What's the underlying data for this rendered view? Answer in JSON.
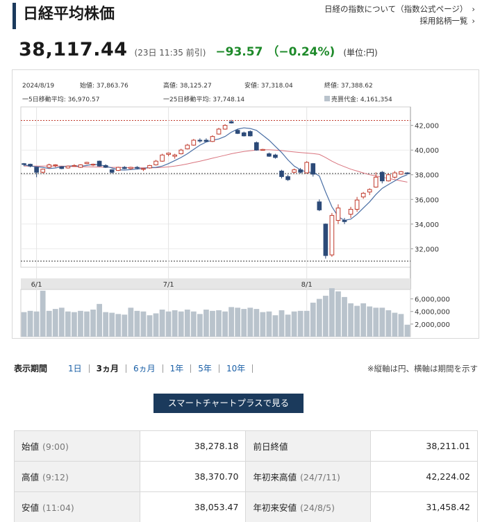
{
  "header": {
    "title": "日経平均株価",
    "link1": "日経の指数について（指数公式ページ）",
    "link2": "採用銘柄一覧",
    "chev": "›"
  },
  "quote": {
    "price": "38,117.44",
    "timestamp": "(23日 11:35 前引)",
    "change": "−93.57 （−0.24%)",
    "unit": "(単位:円)"
  },
  "info": {
    "date": "2024/8/19",
    "open": "始値: 37,863.76",
    "high": "高値: 38,125.27",
    "low": "安値: 37,318.04",
    "close": "終値: 37,388.62",
    "ma5": "一5日移動平均: 36,970.57",
    "ma25": "一25日移動平均: 37,748.14",
    "volume": "売買代金: 4,161,354"
  },
  "colors": {
    "up": "#c0392b",
    "down": "#2c4a78",
    "ma5": "#4a6fa5",
    "ma25": "#d9747e",
    "volume": "#b9c3cc",
    "change": "#1e8a2a",
    "button": "#1b3a5c"
  },
  "chart_data": {
    "type": "candlestick",
    "x_labels": [
      "6/1",
      "7/1",
      "8/1"
    ],
    "y_ticks": [
      "42,000",
      "40,000",
      "38,000",
      "36,000",
      "34,000",
      "32,000"
    ],
    "volume_ticks": [
      "6,000,000",
      "4,000,000",
      "2,000,000"
    ],
    "ylim": [
      30500,
      43500
    ],
    "volume_ylim": [
      0,
      7500000
    ],
    "reference_lines": [
      42400,
      38100,
      31000
    ],
    "candles": [
      [
        38900,
        38950,
        38700,
        38850
      ],
      [
        38850,
        38900,
        38600,
        38700
      ],
      [
        38600,
        38650,
        37800,
        38200
      ],
      [
        38200,
        38500,
        38100,
        38450
      ],
      [
        38600,
        38900,
        38500,
        38800
      ],
      [
        38750,
        38850,
        38600,
        38800
      ],
      [
        38650,
        38700,
        38450,
        38500
      ],
      [
        38550,
        38750,
        38500,
        38700
      ],
      [
        38700,
        38850,
        38650,
        38750
      ],
      [
        38600,
        38850,
        38550,
        38800
      ],
      [
        38900,
        39050,
        38850,
        39000
      ],
      [
        38800,
        38900,
        38700,
        38850
      ],
      [
        39100,
        39150,
        38650,
        38700
      ],
      [
        38750,
        38850,
        38550,
        38600
      ],
      [
        38400,
        38450,
        38100,
        38200
      ],
      [
        38350,
        38650,
        38300,
        38600
      ],
      [
        38600,
        38700,
        38450,
        38500
      ],
      [
        38500,
        38650,
        38400,
        38600
      ],
      [
        38600,
        38700,
        38450,
        38550
      ],
      [
        38450,
        38550,
        38300,
        38500
      ],
      [
        38550,
        38800,
        38500,
        38750
      ],
      [
        38800,
        39200,
        38750,
        39100
      ],
      [
        39100,
        39700,
        39050,
        39600
      ],
      [
        39650,
        39800,
        39500,
        39750
      ],
      [
        39500,
        39700,
        39300,
        39600
      ],
      [
        39700,
        40100,
        39650,
        40000
      ],
      [
        40100,
        40500,
        40050,
        40400
      ],
      [
        40400,
        40900,
        40350,
        40800
      ],
      [
        40800,
        40950,
        40600,
        40750
      ],
      [
        40800,
        40950,
        40650,
        40700
      ],
      [
        40700,
        41200,
        40650,
        41100
      ],
      [
        41300,
        41800,
        41250,
        41700
      ],
      [
        41700,
        42100,
        41650,
        42000
      ],
      [
        42300,
        42450,
        42150,
        42200
      ],
      [
        41600,
        41700,
        41300,
        41350
      ],
      [
        41400,
        41500,
        41100,
        41150
      ],
      [
        41500,
        41600,
        41100,
        41150
      ],
      [
        40600,
        40700,
        39950,
        40000
      ],
      [
        40000,
        40100,
        39950,
        40050
      ],
      [
        39700,
        39800,
        39450,
        39500
      ],
      [
        39600,
        39700,
        39300,
        39400
      ],
      [
        38300,
        38400,
        37700,
        37850
      ],
      [
        37850,
        38000,
        37500,
        37600
      ],
      [
        38200,
        38500,
        38100,
        38400
      ],
      [
        38400,
        38550,
        38100,
        38200
      ],
      [
        38150,
        39100,
        38100,
        39000
      ],
      [
        38900,
        38950,
        37850,
        38050
      ],
      [
        35800,
        36000,
        35050,
        35150
      ],
      [
        34000,
        34050,
        31200,
        31450
      ],
      [
        31500,
        34900,
        31350,
        34700
      ],
      [
        34300,
        35600,
        34000,
        35300
      ],
      [
        34300,
        34500,
        34000,
        34200
      ],
      [
        34800,
        35400,
        34500,
        35200
      ],
      [
        35200,
        36200,
        35000,
        35950
      ],
      [
        36200,
        36600,
        36050,
        36500
      ],
      [
        36600,
        36900,
        36350,
        36800
      ],
      [
        37000,
        38200,
        36950,
        37800
      ],
      [
        38200,
        38300,
        37300,
        37500
      ],
      [
        37500,
        38100,
        37450,
        38000
      ],
      [
        37800,
        38300,
        37700,
        38150
      ],
      [
        38050,
        38300,
        38000,
        38250
      ],
      [
        38150,
        38200,
        38050,
        38100
      ]
    ],
    "ma5": [
      38800,
      38700,
      38650,
      38600,
      38500,
      38550,
      38650,
      38700,
      38720,
      38680,
      38750,
      38850,
      38800,
      38700,
      38550,
      38400,
      38380,
      38420,
      38450,
      38520,
      38580,
      38600,
      38700,
      38900,
      39150,
      39400,
      39700,
      40050,
      40400,
      40650,
      40800,
      40900,
      41100,
      41450,
      41700,
      41800,
      41750,
      41600,
      41200,
      40800,
      40300,
      39800,
      39200,
      38700,
      38400,
      38200,
      38200,
      37900,
      36600,
      35400,
      34600,
      34300,
      34400,
      34800,
      35300,
      35800,
      36400,
      36900,
      37200,
      37500,
      37800,
      38000
    ],
    "ma25": [
      38700,
      38700,
      38700,
      38700,
      38700,
      38700,
      38700,
      38680,
      38660,
      38650,
      38640,
      38630,
      38620,
      38620,
      38600,
      38600,
      38580,
      38570,
      38560,
      38560,
      38560,
      38570,
      38600,
      38640,
      38700,
      38780,
      38880,
      38990,
      39100,
      39220,
      39340,
      39460,
      39580,
      39700,
      39800,
      39880,
      39950,
      40000,
      40020,
      40020,
      40000,
      39960,
      39900,
      39850,
      39800,
      39760,
      39720,
      39650,
      39400,
      39100,
      38850,
      38650,
      38450,
      38300,
      38150,
      38000,
      37900,
      37800,
      37700,
      37600,
      37500,
      37400
    ],
    "volumes": [
      3900000,
      4100000,
      4000000,
      7300000,
      4100000,
      4400000,
      4600000,
      4000000,
      3900000,
      4100000,
      4000000,
      4300000,
      5200000,
      3900000,
      3800000,
      3600000,
      3500000,
      4600000,
      4100000,
      4000000,
      3400000,
      3700000,
      4300000,
      4000000,
      4200000,
      4000000,
      4300000,
      4000000,
      3600000,
      4300000,
      4100000,
      4200000,
      4000000,
      4700000,
      4600000,
      4400000,
      4600000,
      4400000,
      3900000,
      4000000,
      3400000,
      4200000,
      3500000,
      4000000,
      4100000,
      4100000,
      5400000,
      6000000,
      6500000,
      7700000,
      7200000,
      6300000,
      5300000,
      4900000,
      5300000,
      4800000,
      4600000,
      4600000,
      4200000,
      3800000,
      3600000,
      1900000
    ]
  },
  "period": {
    "label": "表示期間",
    "options": [
      "1日",
      "3ヵ月",
      "6ヵ月",
      "1年",
      "5年",
      "10年"
    ],
    "note": "※縦軸は円、横軸は期間を示す"
  },
  "smart_button": "スマートチャートプラスで見る",
  "stats": {
    "rows": [
      {
        "l1": "始値",
        "s1": "(9:00)",
        "v1": "38,278.18",
        "l2": "前日終値",
        "s2": "",
        "v2": "38,211.01"
      },
      {
        "l1": "高値",
        "s1": "(9:12)",
        "v1": "38,370.70",
        "l2": "年初来高値",
        "s2": "(24/7/11)",
        "v2": "42,224.02"
      },
      {
        "l1": "安値",
        "s1": "(11:04)",
        "v1": "38,053.47",
        "l2": "年初来安値",
        "s2": "(24/8/5)",
        "v2": "31,458.42"
      }
    ]
  }
}
